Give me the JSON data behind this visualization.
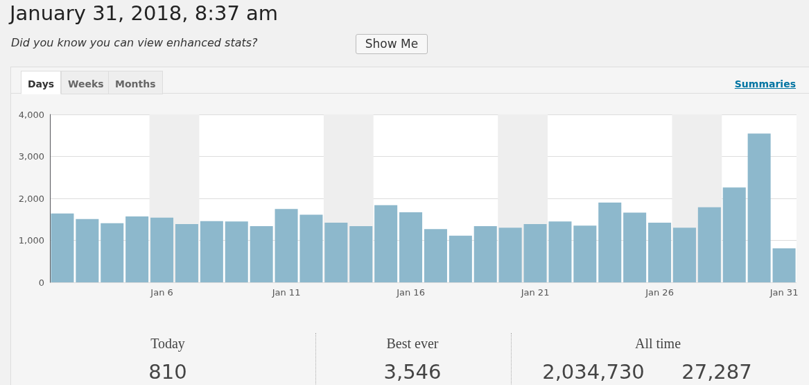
{
  "chart_data": {
    "type": "bar",
    "title": "January 31, 2018, 8:37 am",
    "subtitle": "Did you know you can view enhanced stats?",
    "x": [
      "2018-01-02",
      "2018-01-03",
      "2018-01-04",
      "2018-01-05",
      "2018-01-06",
      "2018-01-07",
      "2018-01-08",
      "2018-01-09",
      "2018-01-10",
      "2018-01-11",
      "2018-01-12",
      "2018-01-13",
      "2018-01-14",
      "2018-01-15",
      "2018-01-16",
      "2018-01-17",
      "2018-01-18",
      "2018-01-19",
      "2018-01-20",
      "2018-01-21",
      "2018-01-22",
      "2018-01-23",
      "2018-01-24",
      "2018-01-25",
      "2018-01-26",
      "2018-01-27",
      "2018-01-28",
      "2018-01-29",
      "2018-01-30",
      "2018-01-31"
    ],
    "values": [
      1640,
      1510,
      1410,
      1570,
      1540,
      1390,
      1460,
      1450,
      1340,
      1750,
      1610,
      1420,
      1340,
      1840,
      1670,
      1270,
      1110,
      1340,
      1300,
      1390,
      1450,
      1350,
      1900,
      1660,
      1420,
      1300,
      1790,
      2260,
      3546,
      810
    ],
    "color": "#8db8cc",
    "xlim": [
      "2018-01-01T12:00",
      "2018-01-31T12:00"
    ],
    "xticks": [
      {
        "value": "2018-01-06",
        "label": "Jan 6"
      },
      {
        "value": "2018-01-11",
        "label": "Jan 11"
      },
      {
        "value": "2018-01-16",
        "label": "Jan 16"
      },
      {
        "value": "2018-01-21",
        "label": "Jan 21"
      },
      {
        "value": "2018-01-26",
        "label": "Jan 26"
      },
      {
        "value": "2018-01-31",
        "label": "Jan 31"
      }
    ],
    "ylim": [
      0,
      4000
    ],
    "yticks": [
      0,
      {
        "value": 1000,
        "label": "1,000"
      },
      {
        "value": 2000,
        "label": "2,000"
      },
      {
        "value": 3000,
        "label": "3,000"
      },
      {
        "value": 4000,
        "label": "4,000"
      }
    ],
    "grid": "y",
    "bands": [
      {
        "axis": "x",
        "from": "2018-01-05T12:00",
        "to": "2018-01-07T12:00",
        "color": "#eeeeee"
      },
      {
        "axis": "x",
        "from": "2018-01-12T12:00",
        "to": "2018-01-14T12:00",
        "color": "#eeeeee"
      },
      {
        "axis": "x",
        "from": "2018-01-19T12:00",
        "to": "2018-01-21T12:00",
        "color": "#eeeeee"
      },
      {
        "axis": "x",
        "from": "2018-01-26T12:00",
        "to": "2018-01-28T12:00",
        "color": "#eeeeee"
      }
    ],
    "annotations": [
      "Show Me",
      "Days",
      "Weeks",
      "Months",
      "Summaries",
      "Today",
      "810",
      "Best ever",
      "3,546",
      "All time",
      "2,034,730",
      "27,287"
    ]
  }
}
